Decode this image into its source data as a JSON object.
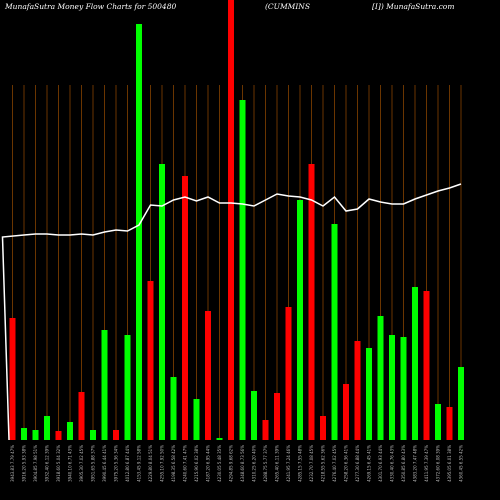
{
  "chart_data": {
    "type": "bar",
    "title": "MunafaSutra  Money Flow  Charts for 500480",
    "subtitle": "(CUMMINS",
    "source": "[I]) MunafaSutra.com",
    "categories": [
      "3943.83 7.79 47%",
      "3916.20 5.93 38%",
      "3904.85 7.98 51%",
      "3932.40 6.12 39%",
      "3918.60 5.04 32%",
      "3940.10 6.71 43%",
      "3905.30 7.02 45%",
      "3951.65 5.88 37%",
      "3990.45 6.44 41%",
      "3975.20 5.36 34%",
      "4012.80 6.87 44%",
      "4153.45 9.12 58%",
      "4229.80 8.04 51%",
      "4255.10 7.92 50%",
      "4198.35 6.58 42%",
      "4240.60 7.41 47%",
      "4215.90 6.02 38%",
      "4187.20 6.95 44%",
      "4230.05 5.48 35%",
      "4294.85 9.68 62%",
      "4348.60 8.73 56%",
      "4310.25 6.20 40%",
      "4288.75 5.77 37%",
      "4265.40 6.11 39%",
      "4241.95 7.24 46%",
      "4285.15 7.55 48%",
      "4232.70 7.08 45%",
      "4218.55 5.62 36%",
      "4276.40 7.02 45%",
      "4258.20 6.36 41%",
      "4277.30 6.88 44%",
      "4269.15 6.45 41%",
      "4301.70 6.93 44%",
      "4330.40 6.76 43%",
      "4350.85 6.80 43%",
      "4383.20 7.47 48%",
      "4411.95 7.39 47%",
      "4372.60 6.08 39%",
      "4395.05 6.01 38%",
      "4360.45 6.55 42%"
    ],
    "values": [
      122,
      12,
      10,
      24,
      9,
      18,
      48,
      10,
      110,
      10,
      105,
      416,
      159,
      276,
      63,
      264,
      41,
      129,
      2,
      440,
      340,
      49,
      20,
      47,
      133,
      240,
      276,
      24,
      216,
      56,
      99,
      92,
      124,
      105,
      103,
      153,
      149,
      36,
      33,
      73
    ],
    "bar_colors": [
      "#ff0000",
      "#00ff00",
      "#00ff00",
      "#00ff00",
      "#ff0000",
      "#00ff00",
      "#ff0000",
      "#00ff00",
      "#00ff00",
      "#ff0000",
      "#00ff00",
      "#00ff00",
      "#ff0000",
      "#00ff00",
      "#00ff00",
      "#ff0000",
      "#00ff00",
      "#ff0000",
      "#00ff00",
      "#ff0000",
      "#00ff00",
      "#00ff00",
      "#ff0000",
      "#ff0000",
      "#ff0000",
      "#00ff00",
      "#ff0000",
      "#ff0000",
      "#00ff00",
      "#ff0000",
      "#ff0000",
      "#00ff00",
      "#00ff00",
      "#00ff00",
      "#00ff00",
      "#00ff00",
      "#ff0000",
      "#00ff00",
      "#ff0000",
      "#00ff00"
    ],
    "line": {
      "color": "#ffffff",
      "values": [
        203,
        205,
        206,
        206,
        205,
        205,
        206,
        205,
        208,
        210,
        209,
        215,
        235,
        234,
        240,
        243,
        239,
        243,
        237,
        237,
        236,
        234,
        240,
        246,
        244,
        243,
        240,
        234,
        243,
        229,
        231,
        241,
        238,
        236,
        236,
        241,
        245,
        249,
        252,
        256
      ]
    },
    "ylim": [
      0,
      440
    ],
    "grid_color": "#b35900"
  }
}
